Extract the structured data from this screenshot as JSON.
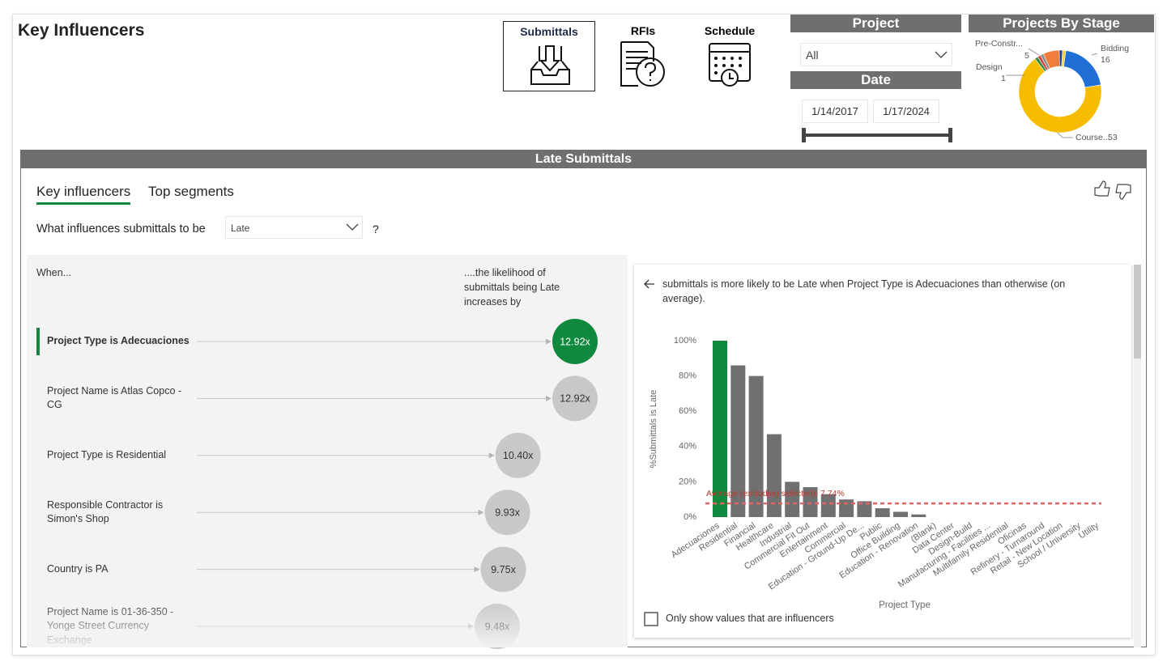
{
  "header": {
    "title": "Key Influencers"
  },
  "nav": [
    {
      "label": "Submittals"
    },
    {
      "label": "RFIs"
    },
    {
      "label": "Schedule"
    }
  ],
  "slicers": {
    "project": {
      "title": "Project",
      "value": "All"
    },
    "date": {
      "title": "Date",
      "start": "1/14/2017",
      "end": "1/17/2024"
    }
  },
  "stage_chart": {
    "type": "donut",
    "title": "Projects By Stage",
    "categories": [
      "Bidding",
      "Course...",
      "Design",
      null,
      null,
      "Pre-Constr...",
      null,
      null
    ],
    "values": [
      16,
      53,
      1,
      1,
      1,
      5,
      1,
      1
    ],
    "colors": [
      "#1f6fd6",
      "#f5bc00",
      "#2a8a3e",
      "#d64545",
      "#8c8c8c",
      "#f07d3a",
      "#1b3f8f",
      "#f2d34a"
    ]
  },
  "panel": {
    "title": "Late Submittals",
    "tabs": [
      "Key influencers",
      "Top segments"
    ],
    "question": "What influences submittals to be",
    "target": "Late",
    "question_end": "?",
    "when": "When...",
    "likelihood": "....the likelihood of submittals being Late increases by"
  },
  "influencers": [
    {
      "label": "Project Type is Adecuaciones",
      "value": 12.92,
      "value_label": "12.92x"
    },
    {
      "label": "Project Name is Atlas Copco - CG",
      "value": 12.92,
      "value_label": "12.92x"
    },
    {
      "label": "Project Type is Residential",
      "value": 10.4,
      "value_label": "10.40x"
    },
    {
      "label": "Responsible Contractor is Simon's Shop",
      "value": 9.93,
      "value_label": "9.93x"
    },
    {
      "label": "Country is PA",
      "value": 9.75,
      "value_label": "9.75x"
    },
    {
      "label": "Project Name is 01-36-350 - Yonge Street Currency Exchange",
      "value": 9.48,
      "value_label": "9.48x"
    }
  ],
  "detail": {
    "description": "submittals is more likely to be Late when Project Type is Adecuaciones than otherwise (on average).",
    "checkbox": "Only show values that are influencers",
    "chart": {
      "type": "bar",
      "categories": [
        "Adecuaciones",
        "Residential",
        "Financial",
        "Healthcare",
        "Industrial",
        "Commercial Fit Out",
        "Entertainment",
        "Commercial",
        "Education - Ground-Up De...",
        "Public",
        "Office Building",
        "Education - Renovation",
        "(Blank)",
        "Data Center",
        "Design-Build",
        "Manufacturing - Facilities ...",
        "Multifamily Residential",
        "Oficinas",
        "Refinery - Turnaround",
        "Retail - New Location",
        "School / University",
        "Utility"
      ],
      "values": [
        100,
        86,
        80,
        47,
        20,
        17,
        13,
        10,
        9,
        5,
        3,
        1.5,
        0,
        0,
        0,
        0,
        0,
        0,
        0,
        0,
        0,
        0
      ],
      "color": "#707070",
      "highlight_color": "#10893e",
      "ylim": [
        0,
        100
      ],
      "yticks": [
        {
          "value": 0,
          "label": "0%"
        },
        {
          "value": 20,
          "label": "20%"
        },
        {
          "value": 40,
          "label": "40%"
        },
        {
          "value": 60,
          "label": "60%"
        },
        {
          "value": 80,
          "label": "80%"
        },
        {
          "value": 100,
          "label": "100%"
        }
      ],
      "xlabel": "Project Type",
      "ylabel": "%Submittals is Late",
      "average": 7.74,
      "average_label": "Average (excluding selected): 7.74%",
      "average_color": "#e06666"
    }
  }
}
